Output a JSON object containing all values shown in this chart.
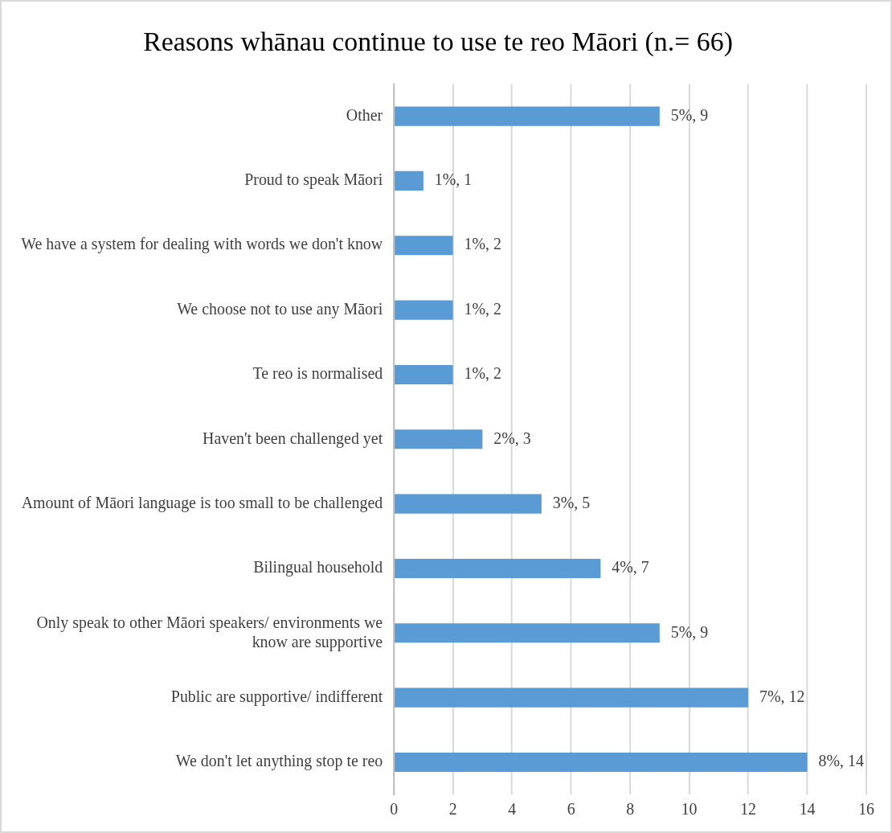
{
  "chart_data": {
    "type": "bar",
    "orientation": "horizontal",
    "title": "Reasons whānau continue to use te reo Māori (n.= 66)",
    "categories": [
      "Other",
      "Proud to speak Māori",
      "We have a system for dealing with words we don't know",
      "We choose not to use any Māori",
      "Te reo is normalised",
      "Haven't been challenged yet",
      "Amount of Māori language is too small to be challenged",
      "Bilingual household",
      "Only speak to other Māori speakers/ environments we know are supportive",
      "Public are supportive/ indifferent",
      "We don't let anything stop te reo"
    ],
    "values": [
      9,
      1,
      2,
      2,
      2,
      3,
      5,
      7,
      9,
      12,
      14
    ],
    "value_labels": [
      "5%, 9",
      "1%, 1",
      "1%, 2",
      "1%, 2",
      "1%, 2",
      "2%, 3",
      "3%, 5",
      "4%, 7",
      "5%, 9",
      "7%, 12",
      "8%, 14"
    ],
    "color": "#5b9bd5",
    "xlim": [
      0,
      16
    ],
    "xticks": [
      0,
      2,
      4,
      6,
      8,
      10,
      12,
      14,
      16
    ],
    "grid": "x",
    "legend": false
  }
}
